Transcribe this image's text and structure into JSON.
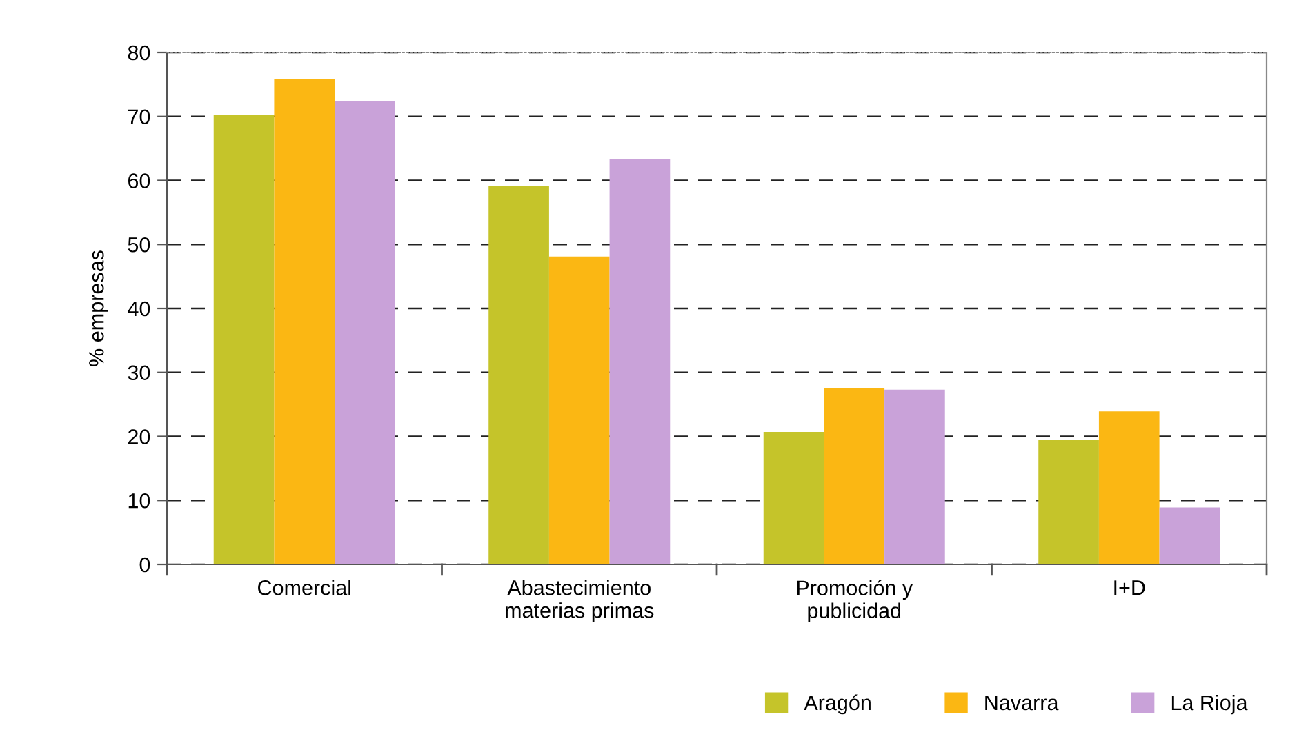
{
  "chart_data": {
    "type": "bar",
    "ylabel": "% empresas",
    "categories": [
      "Comercial",
      "Abastecimiento\nmaterias primas",
      "Promoción y\npublicidad",
      "I+D"
    ],
    "series": [
      {
        "name": "Aragón",
        "color": "#c5c42a",
        "values": [
          70.3,
          59.1,
          20.7,
          19.4
        ]
      },
      {
        "name": "Navarra",
        "color": "#fbb713",
        "values": [
          75.8,
          48.1,
          27.6,
          23.9
        ]
      },
      {
        "name": "La Rioja",
        "color": "#c9a2d9",
        "values": [
          72.4,
          63.3,
          27.3,
          8.9
        ]
      }
    ],
    "ylim": [
      0,
      80
    ],
    "yticks": [
      0,
      10,
      20,
      30,
      40,
      50,
      60,
      70,
      80
    ],
    "grid": "y",
    "line_style": "dashed",
    "legend": "bottom right"
  }
}
